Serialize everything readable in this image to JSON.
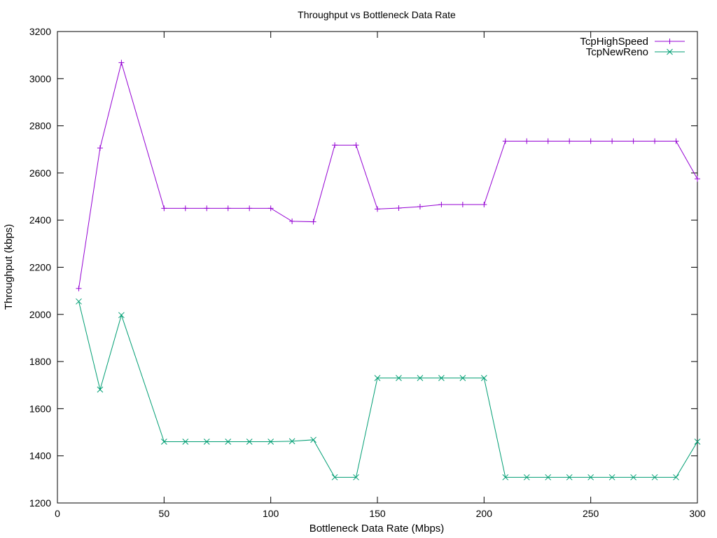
{
  "chart_data": {
    "type": "line",
    "title": "Throughput vs Bottleneck Data Rate",
    "xlabel": "Bottleneck Data Rate (Mbps)",
    "ylabel": "Throughput (kbps)",
    "xlim": [
      0,
      300
    ],
    "ylim": [
      1200,
      3200
    ],
    "xticks": [
      0,
      50,
      100,
      150,
      200,
      250,
      300
    ],
    "yticks": [
      1200,
      1400,
      1600,
      1800,
      2000,
      2200,
      2400,
      2600,
      2800,
      3000,
      3200
    ],
    "grid": false,
    "legend_position": "top-right",
    "x": [
      10,
      20,
      30,
      50,
      60,
      70,
      80,
      90,
      100,
      110,
      120,
      130,
      140,
      150,
      160,
      170,
      180,
      190,
      200,
      210,
      220,
      230,
      240,
      250,
      260,
      270,
      280,
      290,
      300
    ],
    "series": [
      {
        "name": "TcpHighSpeed",
        "color": "#9400d3",
        "marker": "plus",
        "values": [
          2110,
          2706,
          3068,
          2450,
          2450,
          2450,
          2450,
          2450,
          2450,
          2395,
          2393,
          2718,
          2718,
          2447,
          2451,
          2457,
          2466,
          2466,
          2466,
          2735,
          2735,
          2735,
          2735,
          2735,
          2735,
          2735,
          2735,
          2735,
          2575
        ]
      },
      {
        "name": "TcpNewReno",
        "color": "#009e73",
        "marker": "cross",
        "values": [
          2055,
          1681,
          1997,
          1460,
          1460,
          1460,
          1460,
          1460,
          1460,
          1462,
          1468,
          1309,
          1309,
          1730,
          1730,
          1730,
          1730,
          1730,
          1730,
          1309,
          1309,
          1309,
          1309,
          1309,
          1309,
          1309,
          1309,
          1309,
          1460
        ]
      }
    ]
  }
}
